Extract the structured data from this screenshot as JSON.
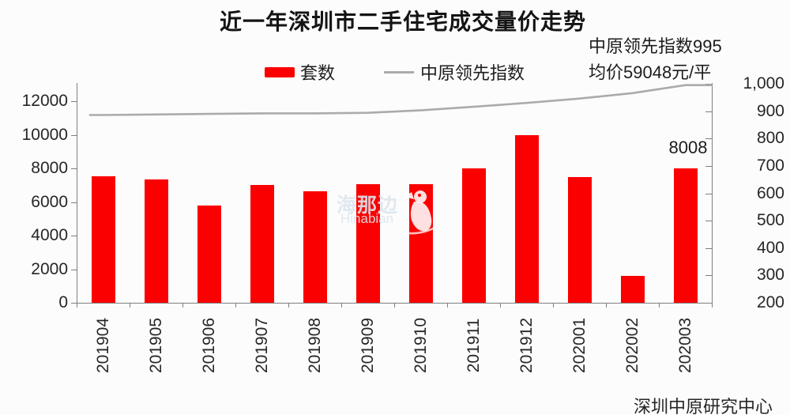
{
  "chart": {
    "title": "近一年深圳市二手住宅成交量价走势",
    "annotation_line1": "中原领先指数995",
    "annotation_line2": "均价59048元/平",
    "last_bar_label": "8008",
    "source": "深圳中原研究中心",
    "watermark_cn": "海那边",
    "watermark_en": "Hinabian"
  },
  "legend": {
    "bars_label": "套数",
    "line_label": "中原领先指数"
  },
  "colors": {
    "bar": "#fb0000",
    "line": "#ababab",
    "axis": "#7f7f7f",
    "text": "#262626"
  },
  "chart_data": {
    "type": "bar",
    "subtype": "bar+line combo, dual axis",
    "title": "近一年深圳市二手住宅成交量价走势",
    "categories": [
      "201904",
      "201905",
      "201906",
      "201907",
      "201908",
      "201909",
      "201910",
      "201911",
      "201912",
      "202001",
      "202002",
      "202003"
    ],
    "series": [
      {
        "name": "套数",
        "type": "bar",
        "axis": "left",
        "color": "#fb0000",
        "values": [
          7550,
          7350,
          5770,
          7000,
          6640,
          7080,
          7060,
          7990,
          9960,
          7470,
          1610,
          8008
        ]
      },
      {
        "name": "中原领先指数",
        "type": "line",
        "axis": "right",
        "color": "#ababab",
        "values": [
          886,
          888,
          890,
          892,
          892,
          894,
          903,
          916,
          930,
          946,
          966,
          995
        ]
      }
    ],
    "data_labels": [
      {
        "category": "202003",
        "series": "套数",
        "text": "8008"
      }
    ],
    "left_axis": {
      "range": [
        0,
        12000
      ],
      "ticks": [
        0,
        2000,
        4000,
        6000,
        8000,
        10000,
        12000
      ],
      "tick_labels": [
        "0",
        "2000",
        "4000",
        "6000",
        "8000",
        "10000",
        "12000"
      ]
    },
    "right_axis": {
      "range": [
        200,
        1000
      ],
      "ticks": [
        200,
        300,
        400,
        500,
        600,
        700,
        800,
        900,
        1000
      ],
      "tick_labels": [
        "200",
        "300",
        "400",
        "500",
        "600",
        "700",
        "800",
        "900",
        "1,000"
      ]
    },
    "grid": false,
    "legend_position": "top-center",
    "annotations": [
      "中原领先指数995",
      "均价59048元/平",
      "深圳中原研究中心"
    ]
  }
}
